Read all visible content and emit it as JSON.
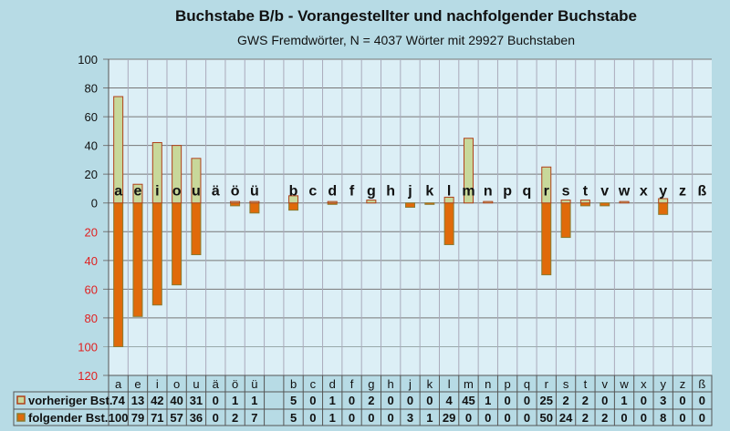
{
  "chart_data": {
    "type": "bar",
    "title": "Buchstabe B/b - Vorangestellter und nachfolgender Buchstabe",
    "subtitle": "GWS Fremdwörter,  N = 4037 Wörter mit 29927 Buchstaben",
    "xlabel": "",
    "ylabel": "",
    "ylim": [
      -120,
      100
    ],
    "yticks_upper": [
      "100",
      "80",
      "60",
      "40",
      "20",
      "0"
    ],
    "yticks_lower": [
      "20",
      "40",
      "60",
      "80",
      "100",
      "120"
    ],
    "categories": [
      "a",
      "e",
      "i",
      "o",
      "u",
      "ä",
      "ö",
      "ü",
      "",
      "b",
      "c",
      "d",
      "f",
      "g",
      "h",
      "j",
      "k",
      "l",
      "m",
      "n",
      "p",
      "q",
      "r",
      "s",
      "t",
      "v",
      "w",
      "x",
      "y",
      "z",
      "ß"
    ],
    "series": [
      {
        "name": "vorheriger Bst.",
        "color": "#c8d89a",
        "border": "#b0401a",
        "direction": "up",
        "values": [
          74,
          13,
          42,
          40,
          31,
          0,
          1,
          1,
          null,
          5,
          0,
          1,
          0,
          2,
          0,
          0,
          0,
          4,
          45,
          1,
          0,
          0,
          25,
          2,
          2,
          0,
          1,
          0,
          3,
          0,
          0
        ]
      },
      {
        "name": "folgender Bst.",
        "color": "#e06a0a",
        "border": "#8a7a30",
        "direction": "down",
        "values": [
          100,
          79,
          71,
          57,
          36,
          0,
          2,
          7,
          null,
          5,
          0,
          1,
          0,
          0,
          0,
          3,
          1,
          29,
          0,
          0,
          0,
          0,
          50,
          24,
          2,
          2,
          0,
          0,
          8,
          0,
          0
        ]
      }
    ],
    "grid": true,
    "legend": "table-below"
  }
}
